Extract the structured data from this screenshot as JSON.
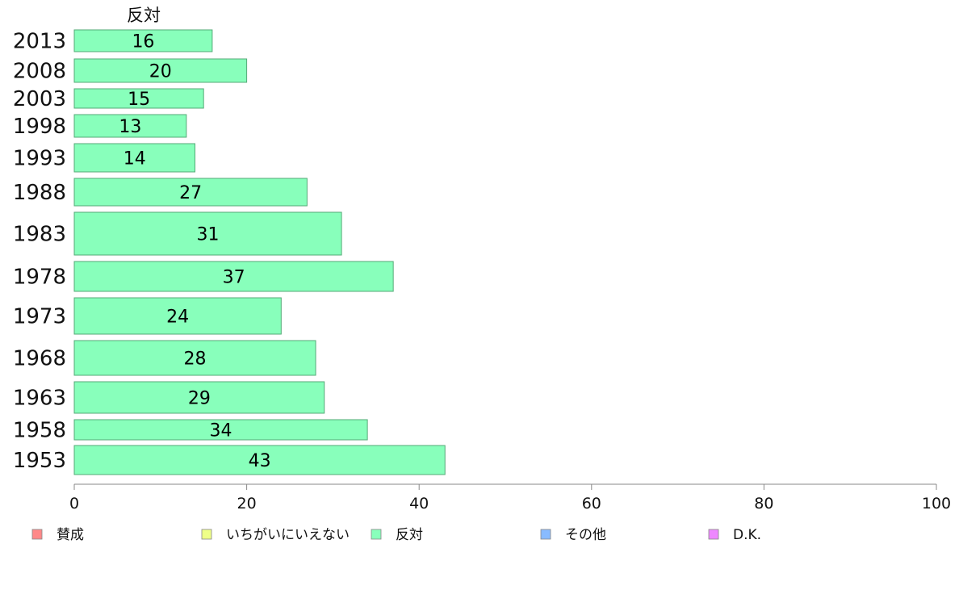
{
  "chart_data": {
    "type": "bar",
    "orientation": "horizontal",
    "title": "反対",
    "categories": [
      "2013",
      "2008",
      "2003",
      "1998",
      "1993",
      "1988",
      "1983",
      "1978",
      "1973",
      "1968",
      "1963",
      "1958",
      "1953"
    ],
    "values": [
      16,
      20,
      15,
      13,
      14,
      27,
      31,
      37,
      24,
      28,
      29,
      34,
      43
    ],
    "value_labels": [
      "16",
      "20",
      "15",
      "13",
      "14",
      "27",
      "31",
      "37",
      "24",
      "28",
      "29",
      "34",
      "43"
    ],
    "bar_color": "#88ffbb",
    "xlim": [
      0,
      100
    ],
    "xticks": [
      0,
      20,
      40,
      60,
      80,
      100
    ],
    "xtick_labels": [
      "0",
      "20",
      "40",
      "60",
      "80",
      "100"
    ],
    "legend_position": "bottom",
    "legend": [
      {
        "label": "賛成",
        "color": "#ff8888"
      },
      {
        "label": "いちがいにいえない",
        "color": "#eeff88"
      },
      {
        "label": "反対",
        "color": "#88ffbb"
      },
      {
        "label": "その他",
        "color": "#88bbff"
      },
      {
        "label": "D.K.",
        "color": "#ee88ff"
      }
    ]
  }
}
